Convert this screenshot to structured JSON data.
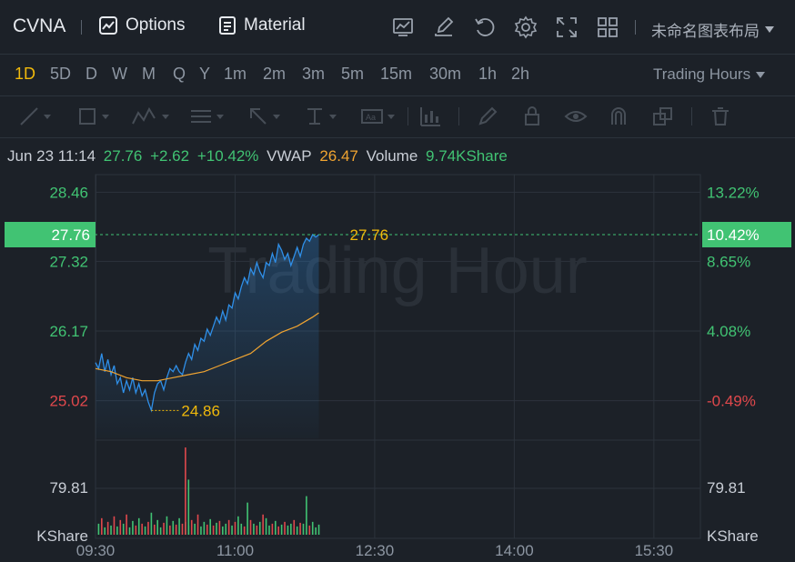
{
  "header": {
    "ticker": "CVNA",
    "options_label": "Options",
    "material_label": "Material",
    "layout_name": "未命名图表布局",
    "icons": [
      "chart-icon",
      "edit-icon",
      "refresh-icon",
      "settings-icon",
      "fullscreen-icon",
      "grid-layout-icon"
    ]
  },
  "periods": [
    "1D",
    "5D",
    "D",
    "W",
    "M",
    "Q",
    "Y",
    "1m",
    "2m",
    "3m",
    "5m",
    "15m",
    "30m",
    "1h",
    "2h"
  ],
  "active_period": "1D",
  "trading_hours_label": "Trading Hours",
  "drawing_tools": [
    "line-tool-icon",
    "rectangle-tool-icon",
    "pattern-tool-icon",
    "fibonacci-tool-icon",
    "arrow-tool-icon",
    "measure-tool-icon",
    "text-tool-icon",
    "indicator-tool-icon",
    "pen-icon",
    "lock-icon",
    "eye-icon",
    "magnet-icon",
    "layers-icon",
    "trash-icon"
  ],
  "info": {
    "datetime": "Jun 23 11:14",
    "price": "27.76",
    "change": "+2.62",
    "change_pct": "+10.42%",
    "vwap_label": "VWAP",
    "vwap": "26.47",
    "volume_label": "Volume",
    "volume": "9.74KShare"
  },
  "colors": {
    "up": "#41c373",
    "down": "#e0484c",
    "vwap": "#f0a431",
    "price_line": "#2f8fe8",
    "accent": "#f0b90b"
  },
  "chart_data": {
    "type": "line",
    "watermark": "Trading Hour",
    "price_axis_left": [
      "28.46",
      "27.32",
      "26.17",
      "25.02"
    ],
    "price_axis_right": [
      "13.22%",
      "8.65%",
      "4.08%",
      "-0.49%"
    ],
    "current_price_label": "27.76",
    "current_pct_label": "10.42%",
    "high_label": "27.76",
    "low_label": "24.86",
    "volume_axis_label": "79.81",
    "volume_unit_label": "KShare",
    "x_ticks": [
      "09:30",
      "11:00",
      "12:30",
      "14:00",
      "15:30"
    ],
    "ylim": [
      24.4,
      28.75
    ],
    "x_range_minutes": [
      0,
      390
    ],
    "price": [
      [
        0,
        25.65
      ],
      [
        2,
        25.55
      ],
      [
        4,
        25.8
      ],
      [
        6,
        25.5
      ],
      [
        8,
        25.7
      ],
      [
        10,
        25.45
      ],
      [
        12,
        25.6
      ],
      [
        14,
        25.3
      ],
      [
        16,
        25.4
      ],
      [
        18,
        25.15
      ],
      [
        20,
        25.35
      ],
      [
        22,
        25.2
      ],
      [
        24,
        25.4
      ],
      [
        26,
        25.15
      ],
      [
        28,
        25.3
      ],
      [
        30,
        25.1
      ],
      [
        32,
        25.2
      ],
      [
        34,
        25.0
      ],
      [
        36,
        24.86
      ],
      [
        38,
        25.15
      ],
      [
        40,
        25.3
      ],
      [
        42,
        25.35
      ],
      [
        44,
        25.2
      ],
      [
        46,
        25.4
      ],
      [
        48,
        25.55
      ],
      [
        50,
        25.5
      ],
      [
        52,
        25.6
      ],
      [
        54,
        25.5
      ],
      [
        56,
        25.45
      ],
      [
        58,
        25.65
      ],
      [
        60,
        25.8
      ],
      [
        62,
        25.7
      ],
      [
        64,
        25.95
      ],
      [
        66,
        25.85
      ],
      [
        68,
        26.05
      ],
      [
        70,
        26.0
      ],
      [
        72,
        26.2
      ],
      [
        74,
        26.1
      ],
      [
        76,
        26.25
      ],
      [
        78,
        26.4
      ],
      [
        80,
        26.3
      ],
      [
        82,
        26.5
      ],
      [
        84,
        26.35
      ],
      [
        86,
        26.6
      ],
      [
        88,
        26.55
      ],
      [
        90,
        26.8
      ],
      [
        92,
        26.7
      ],
      [
        94,
        26.9
      ],
      [
        96,
        27.05
      ],
      [
        98,
        26.95
      ],
      [
        100,
        27.2
      ],
      [
        102,
        27.1
      ],
      [
        104,
        27.3
      ],
      [
        106,
        27.15
      ],
      [
        108,
        27.05
      ],
      [
        110,
        27.3
      ],
      [
        112,
        27.25
      ],
      [
        114,
        27.45
      ],
      [
        116,
        27.3
      ],
      [
        118,
        27.6
      ],
      [
        120,
        27.5
      ],
      [
        122,
        27.35
      ],
      [
        124,
        27.45
      ],
      [
        126,
        27.25
      ],
      [
        128,
        27.4
      ],
      [
        130,
        27.55
      ],
      [
        132,
        27.4
      ],
      [
        134,
        27.6
      ],
      [
        136,
        27.7
      ],
      [
        138,
        27.65
      ],
      [
        140,
        27.76
      ],
      [
        142,
        27.72
      ],
      [
        144,
        27.76
      ]
    ],
    "vwap": [
      [
        0,
        25.55
      ],
      [
        10,
        25.5
      ],
      [
        20,
        25.4
      ],
      [
        30,
        25.35
      ],
      [
        40,
        25.35
      ],
      [
        50,
        25.4
      ],
      [
        60,
        25.45
      ],
      [
        70,
        25.5
      ],
      [
        80,
        25.6
      ],
      [
        90,
        25.7
      ],
      [
        100,
        25.8
      ],
      [
        110,
        26.0
      ],
      [
        120,
        26.15
      ],
      [
        130,
        26.25
      ],
      [
        140,
        26.4
      ],
      [
        144,
        26.47
      ]
    ],
    "volume_max": 100,
    "volume": [
      [
        2,
        12,
        1
      ],
      [
        4,
        18,
        0
      ],
      [
        6,
        8,
        1
      ],
      [
        8,
        14,
        0
      ],
      [
        10,
        10,
        1
      ],
      [
        12,
        20,
        0
      ],
      [
        14,
        9,
        1
      ],
      [
        16,
        16,
        0
      ],
      [
        18,
        12,
        1
      ],
      [
        20,
        22,
        0
      ],
      [
        22,
        8,
        1
      ],
      [
        24,
        15,
        1
      ],
      [
        26,
        10,
        0
      ],
      [
        28,
        18,
        1
      ],
      [
        30,
        12,
        0
      ],
      [
        32,
        9,
        1
      ],
      [
        34,
        14,
        0
      ],
      [
        36,
        24,
        1
      ],
      [
        38,
        11,
        0
      ],
      [
        40,
        16,
        1
      ],
      [
        42,
        8,
        1
      ],
      [
        44,
        13,
        0
      ],
      [
        46,
        20,
        1
      ],
      [
        48,
        10,
        0
      ],
      [
        50,
        15,
        1
      ],
      [
        52,
        9,
        0
      ],
      [
        54,
        18,
        1
      ],
      [
        56,
        12,
        0
      ],
      [
        58,
        14,
        1
      ],
      [
        60,
        10,
        1
      ],
      [
        62,
        16,
        0
      ],
      [
        64,
        12,
        1
      ],
      [
        66,
        22,
        0
      ],
      [
        68,
        9,
        1
      ],
      [
        70,
        14,
        1
      ],
      [
        72,
        11,
        0
      ],
      [
        74,
        17,
        1
      ],
      [
        76,
        10,
        0
      ],
      [
        78,
        13,
        1
      ],
      [
        80,
        15,
        0
      ],
      [
        82,
        9,
        1
      ],
      [
        84,
        12,
        1
      ],
      [
        86,
        16,
        0
      ],
      [
        88,
        10,
        1
      ],
      [
        90,
        14,
        0
      ],
      [
        92,
        20,
        1
      ],
      [
        94,
        12,
        1
      ],
      [
        96,
        9,
        0
      ],
      [
        98,
        35,
        1
      ],
      [
        100,
        16,
        0
      ],
      [
        102,
        12,
        1
      ],
      [
        104,
        10,
        0
      ],
      [
        106,
        14,
        1
      ],
      [
        108,
        22,
        0
      ],
      [
        110,
        18,
        1
      ],
      [
        112,
        10,
        1
      ],
      [
        114,
        12,
        0
      ],
      [
        116,
        15,
        1
      ],
      [
        118,
        9,
        0
      ],
      [
        120,
        11,
        1
      ],
      [
        122,
        14,
        0
      ],
      [
        124,
        10,
        1
      ],
      [
        126,
        12,
        1
      ],
      [
        128,
        16,
        0
      ],
      [
        130,
        9,
        1
      ],
      [
        132,
        13,
        0
      ],
      [
        134,
        12,
        1
      ],
      [
        136,
        42,
        1
      ],
      [
        138,
        10,
        0
      ],
      [
        140,
        14,
        1
      ],
      [
        142,
        8,
        1
      ],
      [
        144,
        11,
        1
      ],
      [
        52,
        11,
        0
      ],
      [
        58,
        95,
        0
      ],
      [
        60,
        60,
        1
      ]
    ]
  }
}
